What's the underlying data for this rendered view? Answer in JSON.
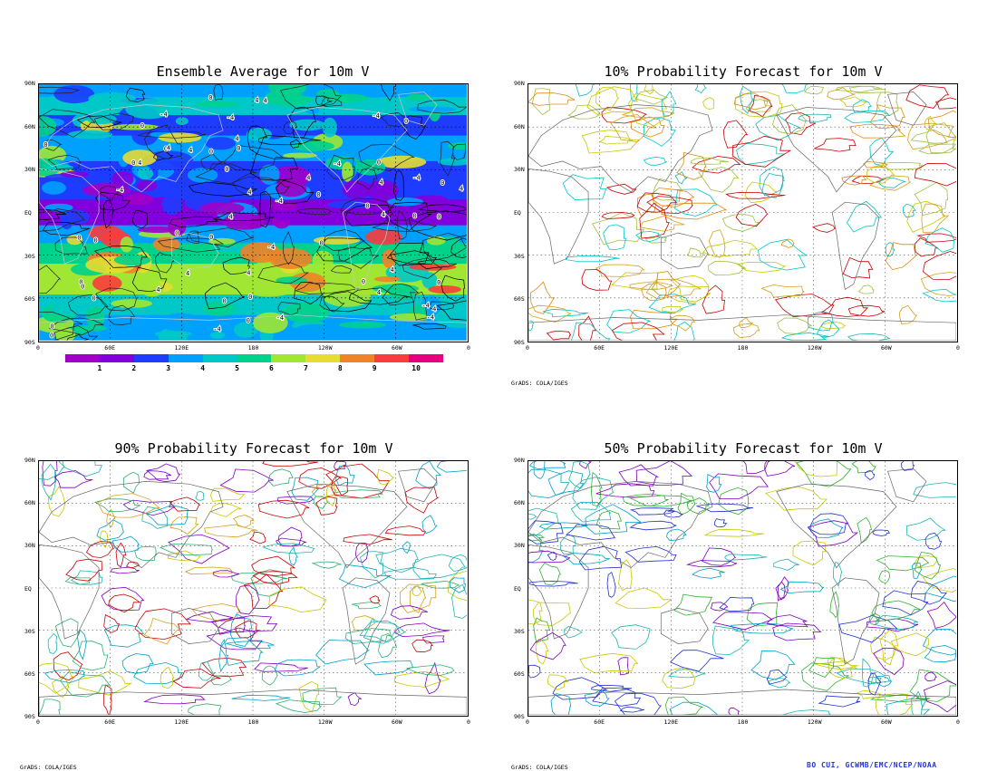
{
  "panels": [
    {
      "id": "avg",
      "title": "Ensemble Average for 10m V"
    },
    {
      "id": "p10",
      "title": "10% Probability Forecast for 10m V"
    },
    {
      "id": "p90",
      "title": "90% Probability Forecast for 10m V"
    },
    {
      "id": "p50",
      "title": "50% Probability Forecast for 10m V"
    }
  ],
  "lat_labels": [
    "90N",
    "60N",
    "30N",
    "EQ",
    "30S",
    "60S",
    "90S"
  ],
  "lon_labels": [
    "0",
    "60E",
    "120E",
    "180",
    "120W",
    "60W",
    "0"
  ],
  "colorbar": {
    "colors": [
      "#a000c8",
      "#8200dc",
      "#1e3cff",
      "#00a0ff",
      "#00c8c8",
      "#00d28c",
      "#a0e632",
      "#e6dc32",
      "#f08228",
      "#fa3c3c",
      "#e6007f"
    ],
    "labels": [
      "1",
      "2",
      "3",
      "4",
      "5",
      "6",
      "7",
      "8",
      "9",
      "10"
    ]
  },
  "footer_grads": "GrADS: COLA/IGES",
  "credit": "BO CUI, GCWMB/EMC/NCEP/NOAA"
}
